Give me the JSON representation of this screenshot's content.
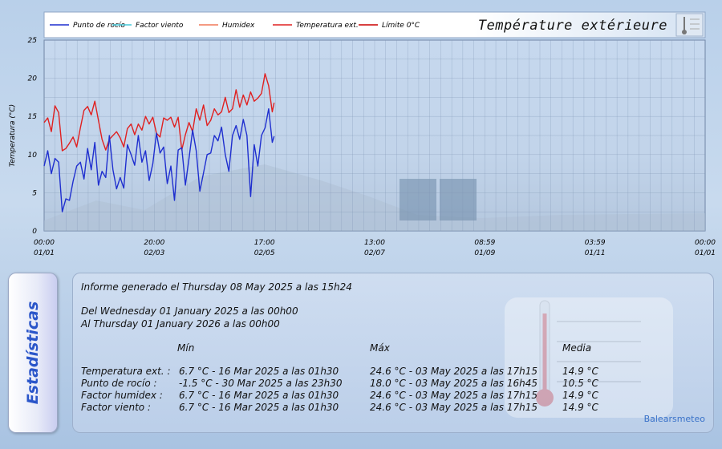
{
  "chart_data": {
    "type": "line",
    "title": "Température extérieure",
    "ylabel": "Temperatura (°C)",
    "ylim": [
      0,
      25
    ],
    "y_ticks": [
      "0",
      "5",
      "10",
      "15",
      "20",
      "25"
    ],
    "x_range": [
      "2025-01-01 00:00",
      "2026-01-01 00:00"
    ],
    "x_ticks": [
      {
        "time": "00:00",
        "date": "01/01"
      },
      {
        "time": "20:00",
        "date": "02/03"
      },
      {
        "time": "17:00",
        "date": "02/05"
      },
      {
        "time": "13:00",
        "date": "02/07"
      },
      {
        "time": "08:59",
        "date": "01/09"
      },
      {
        "time": "03:59",
        "date": "01/11"
      },
      {
        "time": "00:00",
        "date": "01/01"
      }
    ],
    "grid": true,
    "legend_position": "top",
    "legend": [
      {
        "name": "Punto de rocío",
        "color": "#1f2fcf"
      },
      {
        "name": "Factor viento",
        "color": "#46c8d8"
      },
      {
        "name": "Humidex",
        "color": "#f07858"
      },
      {
        "name": "Temperatura ext.",
        "color": "#e02020"
      },
      {
        "name": "Límite 0°C",
        "color": "#cc0000"
      }
    ],
    "series": [
      {
        "name": "Temperatura ext.",
        "color": "#e02020",
        "x": [
          "2025-01-01",
          "2025-01-03",
          "2025-01-05",
          "2025-01-07",
          "2025-01-09",
          "2025-01-11",
          "2025-01-13",
          "2025-01-15",
          "2025-01-17",
          "2025-01-19",
          "2025-01-21",
          "2025-01-23",
          "2025-01-25",
          "2025-01-27",
          "2025-01-29",
          "2025-01-31",
          "2025-02-02",
          "2025-02-04",
          "2025-02-06",
          "2025-02-08",
          "2025-02-10",
          "2025-02-12",
          "2025-02-14",
          "2025-02-16",
          "2025-02-18",
          "2025-02-20",
          "2025-02-22",
          "2025-02-24",
          "2025-02-26",
          "2025-02-28",
          "2025-03-02",
          "2025-03-04",
          "2025-03-06",
          "2025-03-08",
          "2025-03-10",
          "2025-03-12",
          "2025-03-14",
          "2025-03-16",
          "2025-03-18",
          "2025-03-20",
          "2025-03-22",
          "2025-03-24",
          "2025-03-26",
          "2025-03-28",
          "2025-03-30",
          "2025-04-01",
          "2025-04-03",
          "2025-04-05",
          "2025-04-07",
          "2025-04-09",
          "2025-04-11",
          "2025-04-13",
          "2025-04-15",
          "2025-04-17",
          "2025-04-19",
          "2025-04-21",
          "2025-04-23",
          "2025-04-25",
          "2025-04-27",
          "2025-04-29",
          "2025-05-01",
          "2025-05-03",
          "2025-05-05",
          "2025-05-07",
          "2025-05-08"
        ],
        "values": [
          14.2,
          14.8,
          13.0,
          16.4,
          15.5,
          10.5,
          10.8,
          11.5,
          12.3,
          11.0,
          13.5,
          15.8,
          16.3,
          15.2,
          17.0,
          14.5,
          12.0,
          10.6,
          12.0,
          12.5,
          13.0,
          12.2,
          11.0,
          13.4,
          14.0,
          12.6,
          14.0,
          13.2,
          15.0,
          14.0,
          14.9,
          12.8,
          12.3,
          14.8,
          14.5,
          14.9,
          13.6,
          14.9,
          10.6,
          12.6,
          14.2,
          13.0,
          16.0,
          14.5,
          16.5,
          13.8,
          14.5,
          16.0,
          15.2,
          15.6,
          17.5,
          15.5,
          16.0,
          18.5,
          16.2,
          17.8,
          16.5,
          18.2,
          17.0,
          17.4,
          18.0,
          20.6,
          19.0,
          15.6,
          16.8
        ]
      },
      {
        "name": "Punto de rocío",
        "color": "#1f2fcf",
        "x": [
          "2025-01-01",
          "2025-01-03",
          "2025-01-05",
          "2025-01-07",
          "2025-01-09",
          "2025-01-11",
          "2025-01-13",
          "2025-01-15",
          "2025-01-17",
          "2025-01-19",
          "2025-01-21",
          "2025-01-23",
          "2025-01-25",
          "2025-01-27",
          "2025-01-29",
          "2025-01-31",
          "2025-02-02",
          "2025-02-04",
          "2025-02-06",
          "2025-02-08",
          "2025-02-10",
          "2025-02-12",
          "2025-02-14",
          "2025-02-16",
          "2025-02-18",
          "2025-02-20",
          "2025-02-22",
          "2025-02-24",
          "2025-02-26",
          "2025-02-28",
          "2025-03-02",
          "2025-03-04",
          "2025-03-06",
          "2025-03-08",
          "2025-03-10",
          "2025-03-12",
          "2025-03-14",
          "2025-03-16",
          "2025-03-18",
          "2025-03-20",
          "2025-03-22",
          "2025-03-24",
          "2025-03-26",
          "2025-03-28",
          "2025-03-30",
          "2025-04-01",
          "2025-04-03",
          "2025-04-05",
          "2025-04-07",
          "2025-04-09",
          "2025-04-11",
          "2025-04-13",
          "2025-04-15",
          "2025-04-17",
          "2025-04-19",
          "2025-04-21",
          "2025-04-23",
          "2025-04-25",
          "2025-04-27",
          "2025-04-29",
          "2025-05-01",
          "2025-05-03",
          "2025-05-05",
          "2025-05-07",
          "2025-05-08"
        ],
        "values": [
          8.5,
          10.5,
          7.5,
          9.5,
          9.0,
          2.5,
          4.2,
          4.0,
          6.5,
          8.5,
          9.0,
          6.8,
          10.8,
          8.0,
          11.6,
          6.0,
          7.8,
          7.0,
          12.5,
          8.0,
          5.5,
          7.0,
          5.6,
          11.3,
          10.0,
          8.6,
          12.5,
          9.0,
          10.5,
          6.6,
          8.8,
          12.8,
          10.2,
          11.0,
          6.2,
          8.5,
          4.0,
          10.6,
          10.9,
          6.0,
          9.5,
          13.2,
          10.5,
          5.2,
          7.6,
          10.0,
          10.2,
          12.5,
          11.8,
          13.6,
          10.0,
          7.8,
          12.5,
          13.8,
          12.0,
          14.6,
          12.5,
          4.5,
          11.3,
          8.5,
          12.5,
          13.5,
          16.0,
          11.6,
          12.4
        ]
      }
    ]
  },
  "side_tab": {
    "label": "Estadísticas"
  },
  "stats": {
    "generated": "Informe generado el Thursday 08 May 2025 a las 15h24",
    "from": "Del Wednesday 01 January 2025 a las 00h00",
    "to": "Al Thursday 01 January 2026 a las 00h00",
    "headers": {
      "min": "Mín",
      "max": "Máx",
      "avg": "Media"
    },
    "rows": [
      {
        "label": "Temperatura ext. :",
        "min": "6.7 °C - 16 Mar 2025 a las 01h30",
        "max": "24.6 °C - 03 May 2025 a las 17h15",
        "avg": "14.9 °C"
      },
      {
        "label": "Punto de rocío :",
        "min": "-1.5 °C - 30 Mar 2025 a las 23h30",
        "max": "18.0 °C - 03 May 2025 a las 16h45",
        "avg": "10.5 °C"
      },
      {
        "label": "Factor humidex :",
        "min": "6.7 °C - 16 Mar 2025 a las 01h30",
        "max": "24.6 °C - 03 May 2025 a las 17h15",
        "avg": "14.9 °C"
      },
      {
        "label": "Factor viento :",
        "min": "6.7 °C - 16 Mar 2025 a las 01h30",
        "max": "24.6 °C - 03 May 2025 a las 17h15",
        "avg": "14.9 °C"
      }
    ],
    "brand": "Balearsmeteo"
  }
}
